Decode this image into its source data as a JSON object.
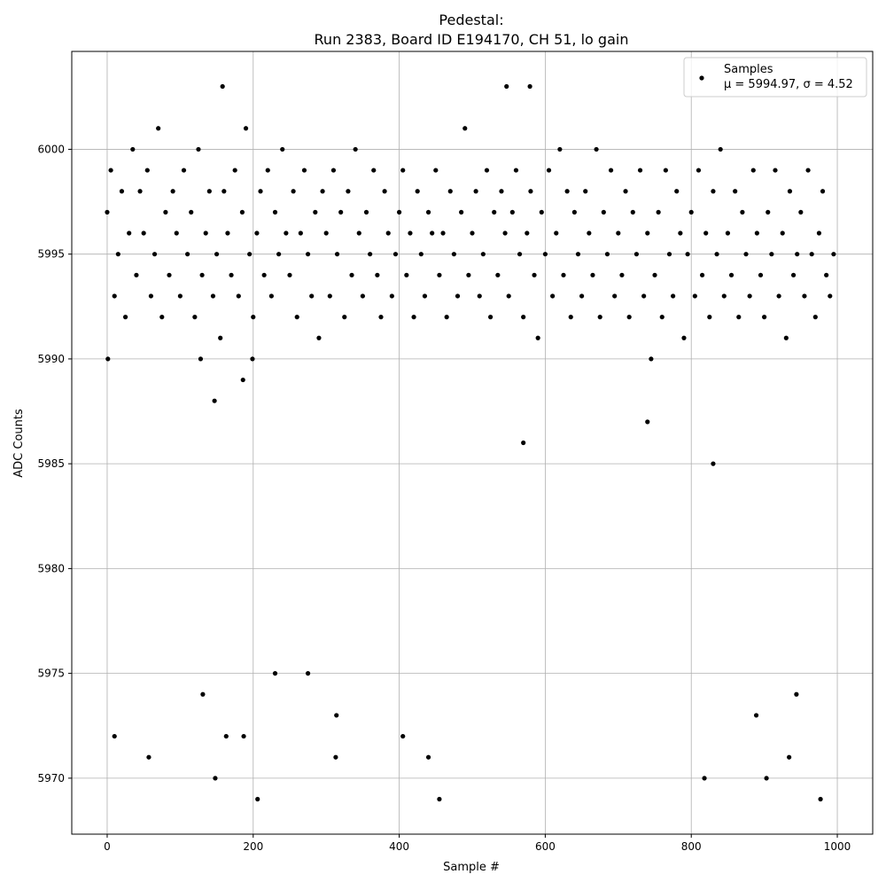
{
  "chart_data": {
    "type": "scatter",
    "title": [
      "Pedestal:",
      "Run 2383, Board ID E194170, CH 51, lo gain"
    ],
    "xlabel": "Sample #",
    "ylabel": "ADC Counts",
    "xlim": [
      -48.5,
      1048.5
    ],
    "xticks": [
      0,
      200,
      400,
      600,
      800,
      1000
    ],
    "ylim": [
      5967.33,
      6004.67
    ],
    "yticks": [
      5970,
      5975,
      5980,
      5985,
      5990,
      5995,
      6000
    ],
    "grid": true,
    "legend": "upper right",
    "series": [
      {
        "name": "Samples",
        "label": "μ = 5994.97, σ = 4.52",
        "color": "#000000",
        "x": [
          0,
          5,
          10,
          15,
          20,
          25,
          30,
          35,
          40,
          45,
          50,
          55,
          60,
          65,
          70,
          75,
          80,
          85,
          90,
          95,
          100,
          105,
          110,
          115,
          120,
          125,
          130,
          135,
          140,
          145,
          150,
          155,
          160,
          165,
          170,
          175,
          180,
          185,
          190,
          195,
          200,
          205,
          210,
          215,
          220,
          225,
          230,
          235,
          240,
          245,
          250,
          255,
          260,
          265,
          270,
          275,
          280,
          285,
          290,
          295,
          300,
          305,
          310,
          315,
          320,
          325,
          330,
          335,
          340,
          345,
          350,
          355,
          360,
          365,
          370,
          375,
          380,
          385,
          390,
          395,
          400,
          405,
          410,
          415,
          420,
          425,
          430,
          435,
          440,
          445,
          450,
          455,
          460,
          465,
          470,
          475,
          480,
          485,
          490,
          495,
          500,
          505,
          510,
          515,
          520,
          525,
          530,
          535,
          540,
          545,
          550,
          555,
          560,
          565,
          570,
          575,
          580,
          585,
          590,
          595,
          600,
          605,
          610,
          615,
          620,
          625,
          630,
          635,
          640,
          645,
          650,
          655,
          660,
          665,
          670,
          675,
          680,
          685,
          690,
          695,
          700,
          705,
          710,
          715,
          720,
          725,
          730,
          735,
          740,
          745,
          750,
          755,
          760,
          765,
          770,
          775,
          780,
          785,
          790,
          795,
          800,
          805,
          810,
          815,
          820,
          825,
          830,
          835,
          840,
          845,
          850,
          855,
          860,
          865,
          870,
          875,
          880,
          885,
          890,
          895,
          900,
          905,
          910,
          915,
          920,
          925,
          930,
          935,
          940,
          945,
          950,
          955,
          960,
          965,
          970,
          975,
          980,
          985,
          990,
          995,
          10,
          57,
          131,
          148,
          163,
          187,
          206,
          230,
          275,
          313,
          314,
          405,
          440,
          455,
          570,
          740,
          818,
          830,
          889,
          903,
          934,
          944,
          977,
          147,
          186,
          1,
          128,
          199,
          158,
          547,
          579
        ],
        "values": [
          5997,
          5999,
          5993,
          5995,
          5998,
          5992,
          5996,
          6000,
          5994,
          5998,
          5996,
          5999,
          5993,
          5995,
          6001,
          5992,
          5997,
          5994,
          5998,
          5996,
          5993,
          5999,
          5995,
          5997,
          5992,
          6000,
          5994,
          5996,
          5998,
          5993,
          5995,
          5991,
          5998,
          5996,
          5994,
          5999,
          5993,
          5997,
          6001,
          5995,
          5992,
          5996,
          5998,
          5994,
          5999,
          5993,
          5997,
          5995,
          6000,
          5996,
          5994,
          5998,
          5992,
          5996,
          5999,
          5995,
          5993,
          5997,
          5991,
          5998,
          5996,
          5993,
          5999,
          5995,
          5997,
          5992,
          5998,
          5994,
          6000,
          5996,
          5993,
          5997,
          5995,
          5999,
          5994,
          5992,
          5998,
          5996,
          5993,
          5995,
          5997,
          5999,
          5994,
          5996,
          5992,
          5998,
          5995,
          5993,
          5997,
          5996,
          5999,
          5994,
          5996,
          5992,
          5998,
          5995,
          5993,
          5997,
          6001,
          5994,
          5996,
          5998,
          5993,
          5995,
          5999,
          5992,
          5997,
          5994,
          5998,
          5996,
          5993,
          5997,
          5999,
          5995,
          5992,
          5996,
          5998,
          5994,
          5991,
          5997,
          5995,
          5999,
          5993,
          5996,
          6000,
          5994,
          5998,
          5992,
          5997,
          5995,
          5993,
          5998,
          5996,
          5994,
          6000,
          5992,
          5997,
          5995,
          5999,
          5993,
          5996,
          5994,
          5998,
          5992,
          5997,
          5995,
          5999,
          5993,
          5996,
          5990,
          5994,
          5997,
          5992,
          5999,
          5995,
          5993,
          5998,
          5996,
          5991,
          5995,
          5997,
          5993,
          5999,
          5994,
          5996,
          5992,
          5998,
          5995,
          6000,
          5993,
          5996,
          5994,
          5998,
          5992,
          5997,
          5995,
          5993,
          5999,
          5996,
          5994,
          5992,
          5997,
          5995,
          5999,
          5993,
          5996,
          5991,
          5998,
          5994,
          5995,
          5997,
          5993,
          5999,
          5995,
          5992,
          5996,
          5998,
          5994,
          5993,
          5995,
          5972,
          5971,
          5974,
          5970,
          5972,
          5972,
          5969,
          5975,
          5975,
          5971,
          5973,
          5972,
          5971,
          5969,
          5986,
          5987,
          5970,
          5985,
          5973,
          5970,
          5971,
          5974,
          5969,
          5988,
          5989,
          5990,
          5990,
          5990,
          6003,
          6003,
          6003
        ]
      }
    ]
  }
}
